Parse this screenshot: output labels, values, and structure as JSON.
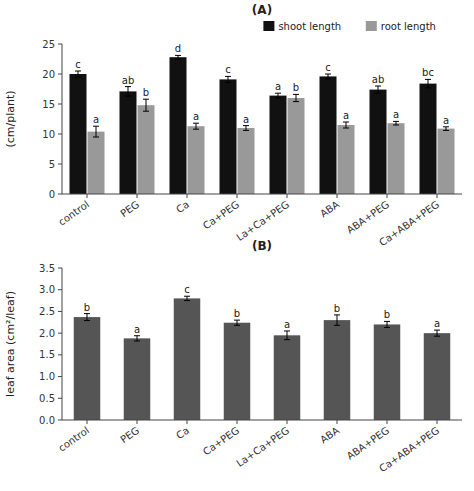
{
  "chart_data": [
    {
      "type": "bar",
      "title": "(A)",
      "y_label": "(cm/plant)",
      "categories": [
        "control",
        "PEG",
        "Ca",
        "Ca+PEG",
        "La+Ca+PEG",
        "ABA",
        "ABA+PEG",
        "Ca+ABA+PEG"
      ],
      "series": [
        {
          "name": "shoot length",
          "color": "#111111",
          "values": [
            20.0,
            17.1,
            22.8,
            19.1,
            16.4,
            19.6,
            17.4,
            18.4
          ],
          "errors": [
            0.5,
            0.8,
            0.3,
            0.5,
            0.4,
            0.4,
            0.6,
            0.7
          ],
          "labels": [
            "c",
            "ab",
            "d",
            "c",
            "a",
            "c",
            "ab",
            "bc"
          ]
        },
        {
          "name": "root length",
          "color": "#999999",
          "values": [
            10.4,
            14.8,
            11.3,
            11.0,
            16.0,
            11.5,
            11.8,
            10.9
          ],
          "errors": [
            0.9,
            1.0,
            0.5,
            0.4,
            0.6,
            0.5,
            0.3,
            0.3
          ],
          "labels": [
            "a",
            "b",
            "a",
            "a",
            "b",
            "a",
            "a",
            "a"
          ]
        }
      ],
      "ylim": [
        0,
        25
      ],
      "yticks": [
        0,
        5,
        10,
        15,
        20,
        25
      ],
      "legend": "upper right",
      "grid": false
    },
    {
      "type": "bar",
      "title": "(B)",
      "y_label": "leaf area (cm²/leaf)",
      "categories": [
        "control",
        "PEG",
        "Ca",
        "Ca+PEG",
        "La+Ca+PEG",
        "ABA",
        "ABA+PEG",
        "Ca+ABA+PEG"
      ],
      "values": [
        2.37,
        1.88,
        2.8,
        2.24,
        1.95,
        2.3,
        2.2,
        2.0
      ],
      "errors": [
        0.08,
        0.06,
        0.05,
        0.06,
        0.1,
        0.12,
        0.07,
        0.07
      ],
      "labels": [
        "b",
        "a",
        "c",
        "b",
        "a",
        "b",
        "b",
        "a"
      ],
      "color": "#555555",
      "ylim": [
        0.0,
        3.5
      ],
      "yticks": [
        {
          "value": 0.0,
          "label": "0.0"
        },
        0.5,
        {
          "value": 1.0,
          "label": "1.0"
        },
        1.5,
        {
          "value": 2.0,
          "label": "2.0"
        },
        2.5,
        {
          "value": 3.0,
          "label": "3.0"
        },
        3.5
      ],
      "grid": false
    }
  ]
}
